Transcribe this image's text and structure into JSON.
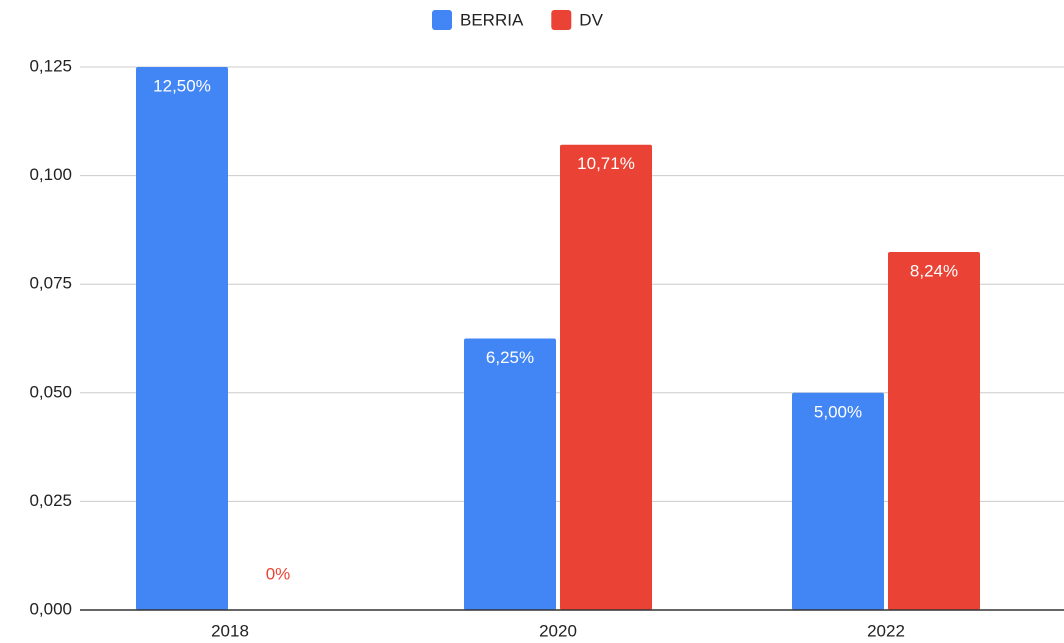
{
  "chart_data": {
    "type": "bar",
    "categories": [
      "2018",
      "2020",
      "2022"
    ],
    "series": [
      {
        "name": "BERRIA",
        "color": "#4285f4",
        "values": [
          0.125,
          0.0625,
          0.05
        ],
        "value_labels": [
          "12,50%",
          "6,25%",
          "5,00%"
        ]
      },
      {
        "name": "DV",
        "color": "#ea4335",
        "values": [
          0,
          0.1071,
          0.0824
        ],
        "value_labels": [
          "0%",
          "10,71%",
          "8,24%"
        ]
      }
    ],
    "ylim": [
      0,
      0.125
    ],
    "yticks": [
      {
        "value": 0,
        "label": "0,000"
      },
      {
        "value": 0.025,
        "label": "0,025"
      },
      {
        "value": 0.05,
        "label": "0,050"
      },
      {
        "value": 0.075,
        "label": "0,075"
      },
      {
        "value": 0.1,
        "label": "0,100"
      },
      {
        "value": 0.125,
        "label": "0,125"
      }
    ],
    "grid": true,
    "legend": "top"
  }
}
